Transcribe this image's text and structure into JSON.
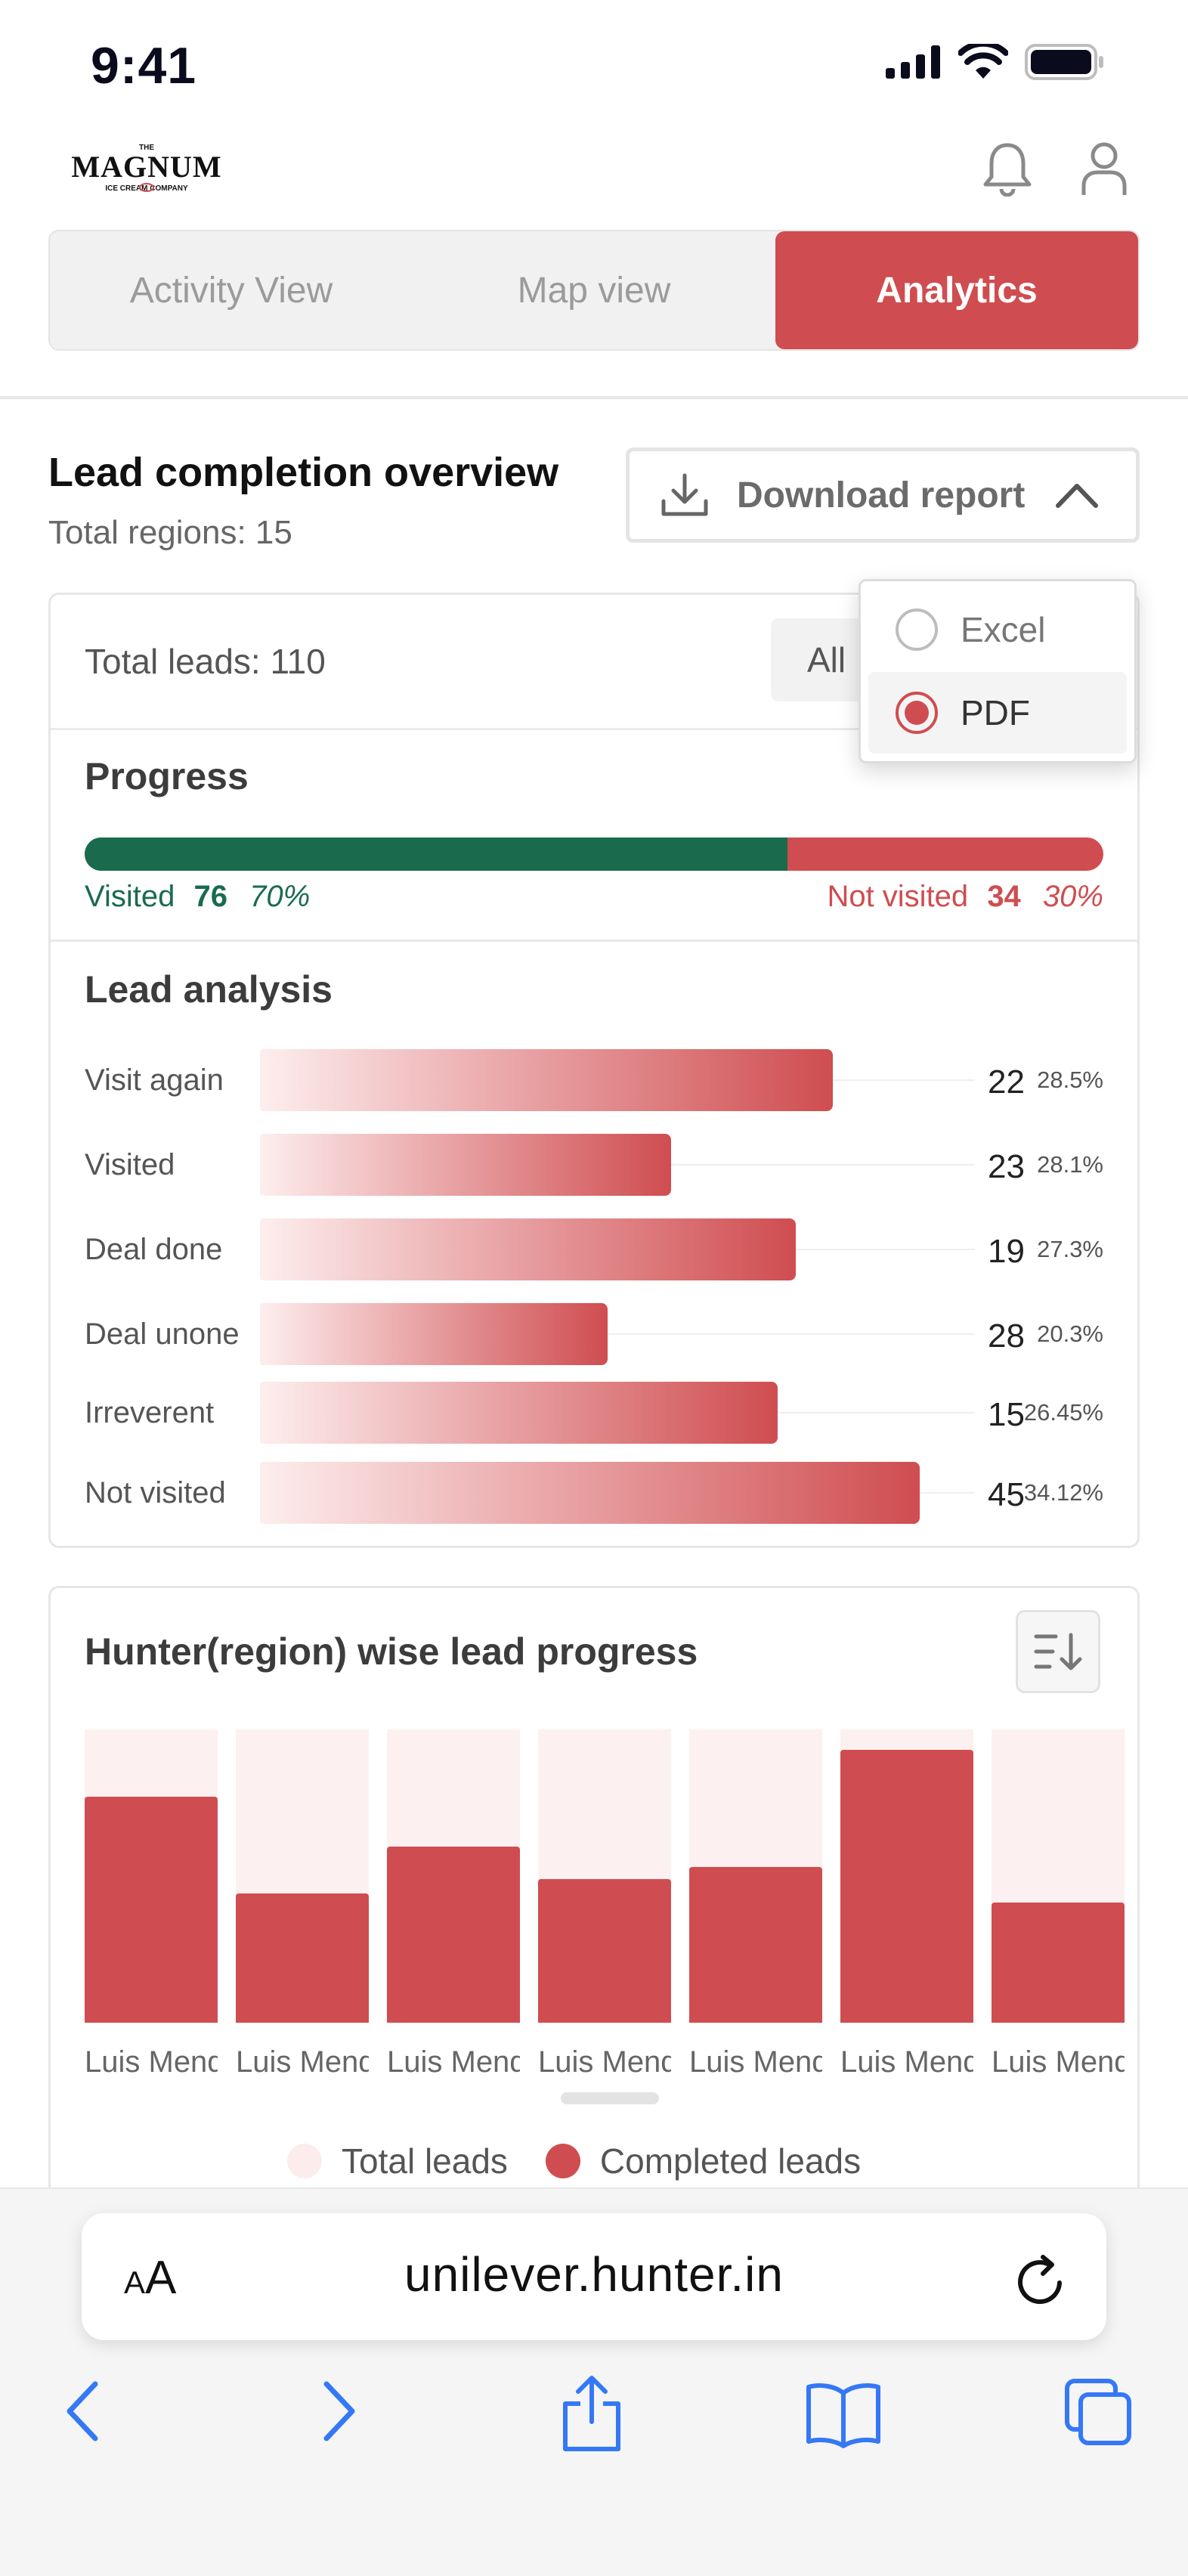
{
  "status_bar": {
    "time": "9:41"
  },
  "header": {
    "logo_top": "THE",
    "logo_brand": "MAGNUM",
    "logo_sub": "ICE CREAM COMPANY"
  },
  "tabs": [
    {
      "label": "Activity View",
      "active": false
    },
    {
      "label": "Map view",
      "active": false
    },
    {
      "label": "Analytics",
      "active": true
    }
  ],
  "overview": {
    "title": "Lead completion overview",
    "subtitle": "Total regions: 15",
    "download_label": "Download report",
    "download_options": [
      {
        "label": "Excel",
        "selected": false
      },
      {
        "label": "PDF",
        "selected": true
      }
    ]
  },
  "summary": {
    "total_leads": "Total leads: 110",
    "filter_value": "All",
    "progress_title": "Progress",
    "visited_label": "Visited",
    "visited_count": "76",
    "visited_pct": "70%",
    "visited_fraction": 0.69,
    "not_visited_label": "Not visited",
    "not_visited_count": "34",
    "not_visited_pct": "30%"
  },
  "lead_analysis": {
    "title": "Lead  analysis",
    "rows": [
      {
        "label": "Visit again",
        "count": "22",
        "pct": "28.5%",
        "fill": 0.725
      },
      {
        "label": "Visited",
        "count": "23",
        "pct": "28.1%",
        "fill": 0.52
      },
      {
        "label": "Deal done",
        "count": "19",
        "pct": "27.3%",
        "fill": 0.678
      },
      {
        "label": "Deal unone",
        "count": "28",
        "pct": "20.3%",
        "fill": 0.44
      },
      {
        "label": "Irreverent",
        "count": "15",
        "pct": "26.45%",
        "fill": 0.655
      },
      {
        "label": "Not visited",
        "count": "45",
        "pct": "34.12%",
        "fill": 0.835
      }
    ]
  },
  "chart_data": {
    "type": "bar",
    "title": "Hunter(region) wise lead progress",
    "categories": [
      "Luis Mend",
      "Luis Mend",
      "Luis Mend",
      "Luis Mend",
      "Luis Mend",
      "Luis Mend",
      "Luis Mend"
    ],
    "series": [
      {
        "name": "Total leads",
        "color": "#fdf0f0",
        "values": [
          100,
          100,
          100,
          100,
          100,
          100,
          100
        ]
      },
      {
        "name": "Completed leads",
        "color": "#cf4d50",
        "values": [
          77,
          44,
          60,
          49,
          53,
          93,
          41
        ]
      }
    ],
    "ylim": [
      0,
      100
    ]
  },
  "legend": {
    "total": "Total leads",
    "completed": "Completed leads"
  },
  "browser": {
    "aa_small": "A",
    "aa_big": "A",
    "url": "unilever.hunter.in"
  },
  "colors": {
    "accent": "#cf4d50",
    "visited": "#1a6b4e",
    "tab_bg": "#f1f1f1",
    "ios_blue": "#3478f6"
  }
}
